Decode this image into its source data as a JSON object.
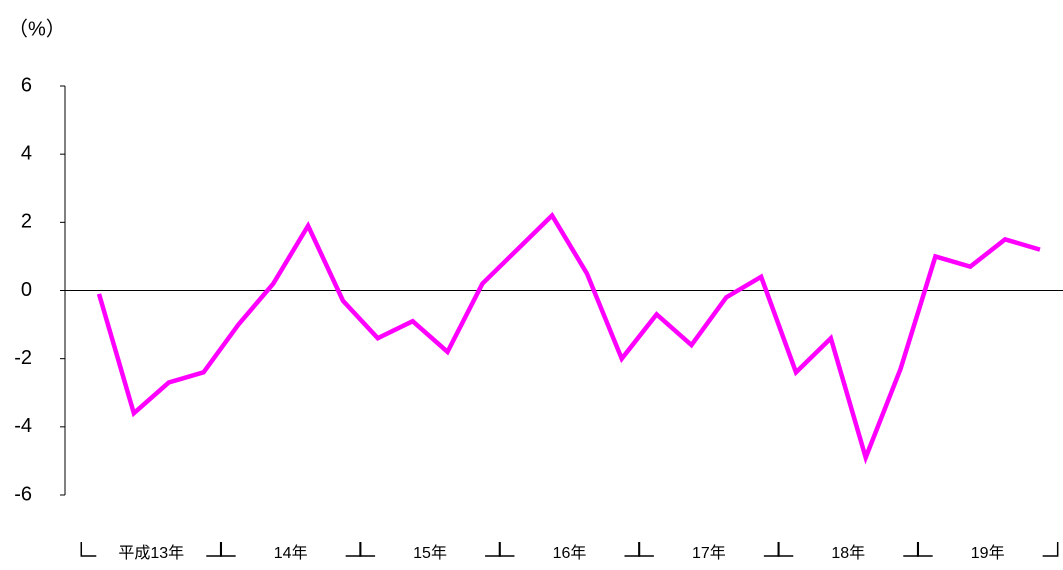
{
  "chart_data": {
    "type": "line",
    "y_label": "（%）",
    "categories": [
      "平成13年",
      null,
      null,
      null,
      "14年",
      null,
      null,
      null,
      "15年",
      null,
      null,
      null,
      "16年",
      null,
      null,
      null,
      "17年",
      null,
      null,
      null,
      "18年",
      null,
      null,
      null,
      "19年",
      null,
      null,
      null
    ],
    "series": [
      {
        "name": null,
        "color": "#ff00ff",
        "values": [
          -0.1,
          -3.6,
          -2.7,
          -2.4,
          -1.0,
          0.2,
          1.9,
          -0.3,
          -1.4,
          -0.9,
          -1.8,
          0.2,
          1.2,
          2.2,
          0.5,
          -2.0,
          -0.7,
          -1.6,
          -0.2,
          0.4,
          -2.4,
          -1.4,
          -4.9,
          -2.3,
          1.0,
          0.7,
          1.5,
          1.2
        ]
      }
    ],
    "ylim": [
      -6,
      6
    ],
    "yticks": [
      -6,
      -4,
      -2,
      0,
      2,
      4,
      6
    ]
  }
}
